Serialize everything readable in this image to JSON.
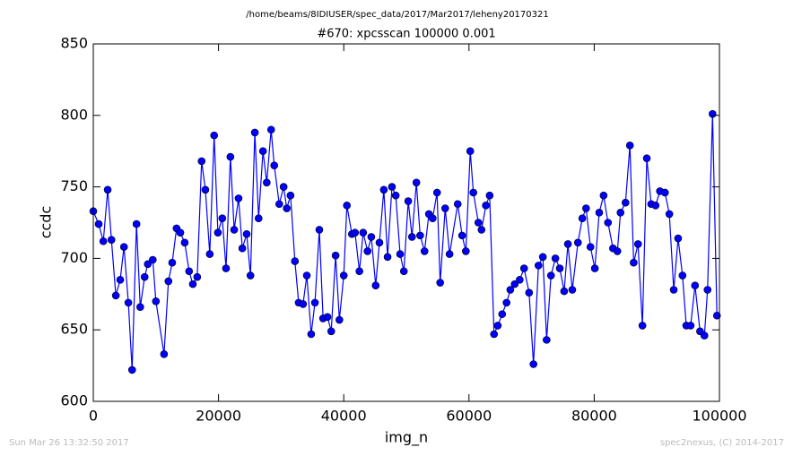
{
  "chart_data": {
    "type": "line",
    "suptitle": "/home/beams/8IDIUSER/spec_data/2017/Mar2017/leheny20170321",
    "title": "#670: xpcsscan 100000 0.001",
    "xlabel": "img_n",
    "ylabel": "ccdc",
    "footer_left": "Sun Mar 26 13:32:50 2017",
    "footer_right": "spec2nexus, (C) 2014-2017",
    "color": "#0000ff",
    "marker_edge": "#000000",
    "xlim": [
      0,
      100000
    ],
    "ylim": [
      600,
      850
    ],
    "xticks": [
      0,
      20000,
      40000,
      60000,
      80000,
      100000
    ],
    "yticks": [
      600,
      650,
      700,
      750,
      800,
      850
    ],
    "x": [
      0,
      860,
      1600,
      2300,
      2900,
      3600,
      4300,
      4900,
      5600,
      6200,
      6900,
      7500,
      8200,
      8700,
      9500,
      10000,
      11300,
      12000,
      12600,
      13300,
      13900,
      14600,
      15300,
      15900,
      16600,
      17300,
      17900,
      18600,
      19300,
      19900,
      20600,
      21200,
      21900,
      22500,
      23200,
      23800,
      24500,
      25100,
      25800,
      26400,
      27100,
      27700,
      28400,
      28900,
      29700,
      30400,
      30900,
      31500,
      32200,
      32800,
      33500,
      34100,
      34800,
      35400,
      36100,
      36700,
      37400,
      38000,
      38700,
      39300,
      40000,
      40500,
      41300,
      41800,
      42500,
      43100,
      43800,
      44400,
      45100,
      45700,
      46400,
      47000,
      47700,
      48300,
      49000,
      49600,
      50300,
      50900,
      51600,
      52200,
      52900,
      53600,
      54200,
      54900,
      55400,
      56200,
      56900,
      58200,
      58900,
      59500,
      60200,
      60700,
      61500,
      62000,
      62700,
      63300,
      64000,
      64600,
      65300,
      66000,
      66600,
      67300,
      68100,
      68800,
      69600,
      70300,
      71100,
      71800,
      72400,
      73100,
      73800,
      74500,
      75200,
      75800,
      76500,
      77400,
      78100,
      78700,
      79400,
      80100,
      80800,
      81500,
      82200,
      83000,
      83700,
      84200,
      85000,
      85700,
      86300,
      87000,
      87700,
      88400,
      89100,
      89800,
      90500,
      91300,
      92000,
      92700,
      93400,
      94100,
      94700,
      95400,
      96100,
      96900,
      97600,
      98100,
      98900,
      99600
    ],
    "values": [
      733,
      724,
      712,
      748,
      713,
      674,
      685,
      708,
      669,
      622,
      724,
      666,
      687,
      696,
      699,
      670,
      633,
      684,
      697,
      721,
      718,
      711,
      691,
      682,
      687,
      768,
      748,
      703,
      786,
      718,
      728,
      693,
      771,
      720,
      742,
      707,
      717,
      688,
      788,
      728,
      775,
      753,
      790,
      765,
      738,
      750,
      735,
      744,
      698,
      669,
      668,
      688,
      647,
      669,
      720,
      658,
      659,
      649,
      702,
      657,
      688,
      737,
      717,
      718,
      691,
      718,
      705,
      715,
      681,
      711,
      748,
      701,
      750,
      744,
      703,
      691,
      740,
      715,
      753,
      716,
      705,
      731,
      728,
      746,
      683,
      735,
      703,
      738,
      716,
      705,
      775,
      746,
      725,
      720,
      737,
      744,
      647,
      653,
      661,
      669,
      678,
      682,
      685,
      693,
      676,
      626,
      695,
      701,
      643,
      688,
      700,
      693,
      677,
      710,
      678,
      711,
      728,
      735,
      708,
      693,
      732,
      744,
      725,
      707,
      705,
      732,
      739,
      779,
      697,
      710,
      653,
      770,
      738,
      737,
      747,
      746,
      731,
      678,
      714,
      688,
      653,
      653,
      681,
      649,
      646,
      678,
      801,
      660
    ]
  }
}
